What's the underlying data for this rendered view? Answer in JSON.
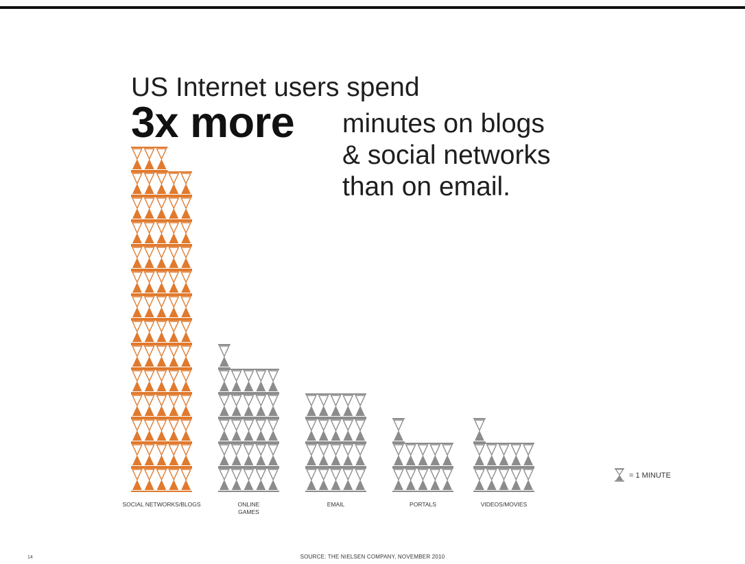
{
  "headline": {
    "line1": "US Internet users spend",
    "emphasis": "3x more",
    "rest_lines": [
      "minutes on blogs",
      "& social networks",
      "than on email."
    ]
  },
  "legend": {
    "icon": "hourglass-icon",
    "text": "= 1 MINUTE"
  },
  "footer": {
    "page_number": "14",
    "source": "SOURCE: THE NIELSEN COMPANY, NOVEMBER 2010"
  },
  "colors": {
    "highlight": "#E07A2E",
    "neutral": "#8C8C8C",
    "rule": "#111111"
  },
  "chart_data": {
    "type": "bar",
    "unit": "minutes",
    "icon": "hourglass-icon",
    "icons_per_row": 5,
    "categories": [
      "SOCIAL NETWORKS/BLOGS",
      "ONLINE\nGAMES",
      "EMAIL",
      "PORTALS",
      "VIDEOS/MOVIES"
    ],
    "values": [
      68,
      26,
      20,
      11,
      11
    ],
    "highlight_index": 0,
    "legend_placement": "bottom-right",
    "grid": false
  }
}
